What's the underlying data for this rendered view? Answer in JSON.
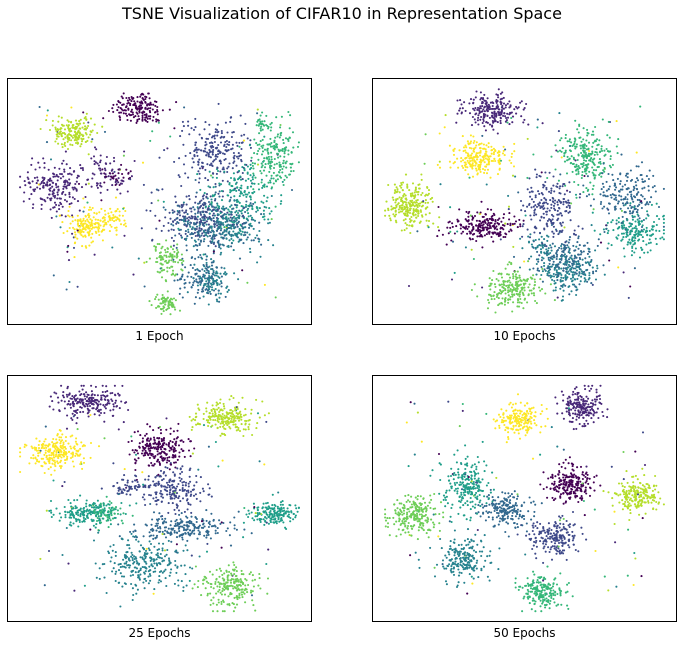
{
  "figure": {
    "title": "TSNE Visualization of CIFAR10 in Representation Space"
  },
  "palette": [
    "#440154",
    "#482878",
    "#3e4989",
    "#31688e",
    "#26828e",
    "#1f9e89",
    "#35b779",
    "#6ece58",
    "#b5de2b",
    "#fde725"
  ],
  "chart_data": [
    {
      "type": "scatter",
      "xlabel": "1 Epoch",
      "grid": false,
      "clusters": [
        {
          "class": 0,
          "cx": 0.43,
          "cy": 0.12,
          "rx": 0.09,
          "ry": 0.07,
          "n": 170
        },
        {
          "class": 0,
          "cx": 0.36,
          "cy": 0.4,
          "rx": 0.06,
          "ry": 0.04,
          "n": 30
        },
        {
          "class": 1,
          "cx": 0.15,
          "cy": 0.44,
          "rx": 0.09,
          "ry": 0.1,
          "n": 190
        },
        {
          "class": 1,
          "cx": 0.32,
          "cy": 0.38,
          "rx": 0.07,
          "ry": 0.08,
          "n": 70
        },
        {
          "class": 2,
          "cx": 0.68,
          "cy": 0.3,
          "rx": 0.12,
          "ry": 0.12,
          "n": 230
        },
        {
          "class": 2,
          "cx": 0.62,
          "cy": 0.56,
          "rx": 0.14,
          "ry": 0.1,
          "n": 180
        },
        {
          "class": 3,
          "cx": 0.68,
          "cy": 0.6,
          "rx": 0.15,
          "ry": 0.12,
          "n": 230
        },
        {
          "class": 3,
          "cx": 0.64,
          "cy": 0.82,
          "rx": 0.08,
          "ry": 0.09,
          "n": 120
        },
        {
          "class": 4,
          "cx": 0.72,
          "cy": 0.6,
          "rx": 0.12,
          "ry": 0.11,
          "n": 200
        },
        {
          "class": 4,
          "cx": 0.68,
          "cy": 0.82,
          "rx": 0.06,
          "ry": 0.07,
          "n": 90
        },
        {
          "class": 5,
          "cx": 0.77,
          "cy": 0.48,
          "rx": 0.11,
          "ry": 0.14,
          "n": 180
        },
        {
          "class": 6,
          "cx": 0.88,
          "cy": 0.32,
          "rx": 0.07,
          "ry": 0.14,
          "n": 190
        },
        {
          "class": 6,
          "cx": 0.84,
          "cy": 0.18,
          "rx": 0.02,
          "ry": 0.03,
          "n": 25
        },
        {
          "class": 7,
          "cx": 0.53,
          "cy": 0.74,
          "rx": 0.05,
          "ry": 0.07,
          "n": 100
        },
        {
          "class": 7,
          "cx": 0.52,
          "cy": 0.91,
          "rx": 0.04,
          "ry": 0.05,
          "n": 80
        },
        {
          "class": 8,
          "cx": 0.22,
          "cy": 0.22,
          "rx": 0.07,
          "ry": 0.06,
          "n": 170
        },
        {
          "class": 9,
          "cx": 0.26,
          "cy": 0.6,
          "rx": 0.07,
          "ry": 0.07,
          "n": 160
        },
        {
          "class": 9,
          "cx": 0.35,
          "cy": 0.56,
          "rx": 0.04,
          "ry": 0.05,
          "n": 50
        }
      ]
    },
    {
      "type": "scatter",
      "xlabel": "10 Epochs",
      "grid": false,
      "clusters": [
        {
          "class": 0,
          "cx": 0.37,
          "cy": 0.6,
          "rx": 0.1,
          "ry": 0.06,
          "n": 220
        },
        {
          "class": 1,
          "cx": 0.39,
          "cy": 0.13,
          "rx": 0.1,
          "ry": 0.07,
          "n": 220
        },
        {
          "class": 2,
          "cx": 0.58,
          "cy": 0.53,
          "rx": 0.09,
          "ry": 0.13,
          "n": 200
        },
        {
          "class": 3,
          "cx": 0.84,
          "cy": 0.48,
          "rx": 0.1,
          "ry": 0.11,
          "n": 190
        },
        {
          "class": 3,
          "cx": 0.64,
          "cy": 0.74,
          "rx": 0.1,
          "ry": 0.1,
          "n": 170
        },
        {
          "class": 4,
          "cx": 0.64,
          "cy": 0.78,
          "rx": 0.1,
          "ry": 0.09,
          "n": 180
        },
        {
          "class": 4,
          "cx": 0.55,
          "cy": 0.68,
          "rx": 0.05,
          "ry": 0.05,
          "n": 40
        },
        {
          "class": 5,
          "cx": 0.87,
          "cy": 0.62,
          "rx": 0.09,
          "ry": 0.08,
          "n": 180
        },
        {
          "class": 6,
          "cx": 0.7,
          "cy": 0.32,
          "rx": 0.09,
          "ry": 0.12,
          "n": 240
        },
        {
          "class": 7,
          "cx": 0.46,
          "cy": 0.86,
          "rx": 0.1,
          "ry": 0.08,
          "n": 220
        },
        {
          "class": 8,
          "cx": 0.12,
          "cy": 0.51,
          "rx": 0.07,
          "ry": 0.09,
          "n": 240
        },
        {
          "class": 9,
          "cx": 0.35,
          "cy": 0.32,
          "rx": 0.09,
          "ry": 0.07,
          "n": 220
        }
      ]
    },
    {
      "type": "scatter",
      "xlabel": "25 Epochs",
      "grid": false,
      "clusters": [
        {
          "class": 0,
          "cx": 0.5,
          "cy": 0.3,
          "rx": 0.09,
          "ry": 0.08,
          "n": 220
        },
        {
          "class": 1,
          "cx": 0.27,
          "cy": 0.11,
          "rx": 0.11,
          "ry": 0.06,
          "n": 220
        },
        {
          "class": 2,
          "cx": 0.54,
          "cy": 0.46,
          "rx": 0.1,
          "ry": 0.08,
          "n": 200
        },
        {
          "class": 2,
          "cx": 0.4,
          "cy": 0.45,
          "rx": 0.06,
          "ry": 0.04,
          "n": 50
        },
        {
          "class": 3,
          "cx": 0.58,
          "cy": 0.62,
          "rx": 0.16,
          "ry": 0.05,
          "n": 220
        },
        {
          "class": 4,
          "cx": 0.45,
          "cy": 0.77,
          "rx": 0.13,
          "ry": 0.1,
          "n": 260
        },
        {
          "class": 5,
          "cx": 0.88,
          "cy": 0.56,
          "rx": 0.08,
          "ry": 0.05,
          "n": 170
        },
        {
          "class": 5,
          "cx": 0.26,
          "cy": 0.56,
          "rx": 0.1,
          "ry": 0.05,
          "n": 190
        },
        {
          "class": 6,
          "cx": 0.33,
          "cy": 0.56,
          "rx": 0.06,
          "ry": 0.05,
          "n": 60
        },
        {
          "class": 7,
          "cx": 0.73,
          "cy": 0.86,
          "rx": 0.1,
          "ry": 0.08,
          "n": 210
        },
        {
          "class": 8,
          "cx": 0.72,
          "cy": 0.17,
          "rx": 0.1,
          "ry": 0.06,
          "n": 220
        },
        {
          "class": 9,
          "cx": 0.16,
          "cy": 0.31,
          "rx": 0.1,
          "ry": 0.07,
          "n": 230
        }
      ]
    },
    {
      "type": "scatter",
      "xlabel": "50 Epochs",
      "grid": false,
      "clusters": [
        {
          "class": 0,
          "cx": 0.65,
          "cy": 0.44,
          "rx": 0.07,
          "ry": 0.07,
          "n": 220
        },
        {
          "class": 1,
          "cx": 0.69,
          "cy": 0.13,
          "rx": 0.07,
          "ry": 0.07,
          "n": 200
        },
        {
          "class": 2,
          "cx": 0.6,
          "cy": 0.66,
          "rx": 0.08,
          "ry": 0.07,
          "n": 190
        },
        {
          "class": 3,
          "cx": 0.44,
          "cy": 0.55,
          "rx": 0.08,
          "ry": 0.07,
          "n": 190
        },
        {
          "class": 4,
          "cx": 0.3,
          "cy": 0.75,
          "rx": 0.08,
          "ry": 0.08,
          "n": 200
        },
        {
          "class": 5,
          "cx": 0.31,
          "cy": 0.45,
          "rx": 0.08,
          "ry": 0.11,
          "n": 220
        },
        {
          "class": 6,
          "cx": 0.56,
          "cy": 0.88,
          "rx": 0.07,
          "ry": 0.06,
          "n": 200
        },
        {
          "class": 7,
          "cx": 0.13,
          "cy": 0.57,
          "rx": 0.08,
          "ry": 0.08,
          "n": 230
        },
        {
          "class": 8,
          "cx": 0.87,
          "cy": 0.49,
          "rx": 0.07,
          "ry": 0.07,
          "n": 210
        },
        {
          "class": 9,
          "cx": 0.48,
          "cy": 0.18,
          "rx": 0.07,
          "ry": 0.06,
          "n": 190
        }
      ]
    }
  ]
}
